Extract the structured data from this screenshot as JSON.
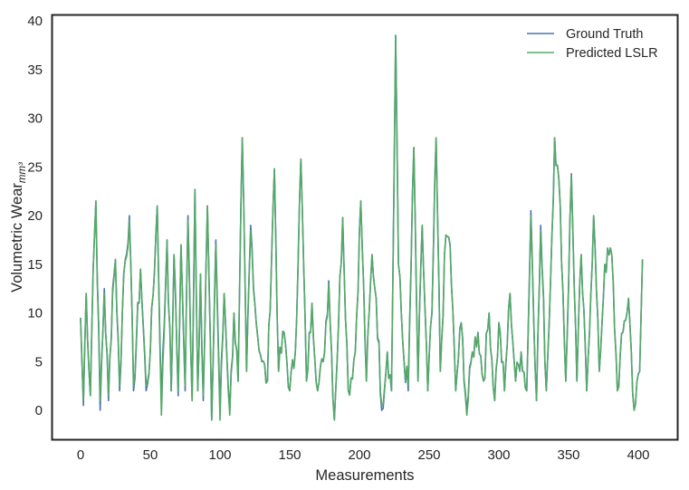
{
  "chart_data": {
    "type": "line",
    "title": "",
    "xlabel": "Measurements",
    "ylabel": "Volumetric Wear",
    "ylabel_subscript": "mm³",
    "xlim": [
      -20,
      420
    ],
    "ylim": [
      -3,
      40.5
    ],
    "xticks": [
      0,
      50,
      100,
      150,
      200,
      250,
      300,
      350,
      400
    ],
    "yticks": [
      0,
      5,
      10,
      15,
      20,
      25,
      30,
      35,
      40
    ],
    "grid": false,
    "legend_position": "upper right",
    "colors": {
      "ground_truth": "#4c72b0",
      "predicted": "#55a868",
      "frame": "#262626"
    },
    "series": [
      {
        "name": "Ground Truth",
        "color": "#4c72b0"
      },
      {
        "name": "Predicted LSLR",
        "color": "#55a868"
      }
    ],
    "keypoints": {
      "x": [
        0,
        2,
        4,
        7,
        9,
        11,
        14,
        17,
        20,
        23,
        25,
        28,
        31,
        35,
        38,
        43,
        47,
        50,
        55,
        58,
        62,
        65,
        67,
        70,
        72,
        75,
        77,
        80,
        82,
        84,
        86,
        88,
        91,
        94,
        97,
        100,
        103,
        107,
        110,
        113,
        116,
        119,
        122,
        126,
        130,
        134,
        139,
        142,
        146,
        150,
        154,
        158,
        162,
        166,
        170,
        174,
        178,
        182,
        188,
        192,
        197,
        201,
        205,
        209,
        212,
        216,
        220,
        223,
        226,
        228,
        232,
        235,
        239,
        242,
        245,
        249,
        252,
        255,
        258,
        262,
        265,
        269,
        273,
        277,
        281,
        285,
        289,
        293,
        297,
        300,
        304,
        308,
        312,
        316,
        320,
        323,
        327,
        330,
        334,
        337,
        340,
        344,
        348,
        352,
        356,
        359,
        363,
        368,
        372,
        376,
        381,
        385,
        389,
        393,
        397,
        401,
        403
      ],
      "ground_truth": [
        9.5,
        0.5,
        12,
        1.5,
        14.5,
        21.5,
        0,
        12.5,
        1,
        12.5,
        15.5,
        2,
        14,
        20,
        2,
        14.5,
        2,
        6,
        21,
        1,
        17.5,
        2,
        16,
        1.5,
        17,
        2,
        20,
        1,
        22.7,
        2,
        14,
        1,
        21,
        -1,
        17.5,
        0,
        12,
        0,
        10,
        3,
        28,
        4,
        19,
        9,
        5,
        3,
        24.8,
        4,
        8,
        2,
        6,
        25.8,
        3,
        11,
        2,
        5,
        13.3,
        -1,
        19.8,
        2,
        6,
        21.5,
        3,
        16,
        11.5,
        0,
        6,
        2,
        38.5,
        15,
        5,
        2,
        27,
        3,
        19,
        2,
        10,
        28,
        4,
        18,
        17,
        2,
        9,
        0,
        6,
        8,
        3,
        10,
        1,
        9,
        2,
        12,
        3,
        6,
        2,
        20.5,
        1,
        19,
        2,
        13,
        28,
        21,
        3,
        24.3,
        3,
        16,
        2,
        20,
        4,
        15,
        16,
        2,
        8,
        11.5,
        0,
        4,
        15.5
      ],
      "predicted": [
        9.5,
        1,
        12,
        1.5,
        14.5,
        21.5,
        1,
        12,
        1.5,
        12,
        15.5,
        2.5,
        14,
        19.5,
        2.5,
        14.5,
        2.5,
        6,
        21,
        -0.5,
        17.5,
        2,
        16,
        2,
        17,
        2.5,
        19.5,
        1,
        22.7,
        2,
        14,
        1.5,
        21,
        -1,
        17,
        -1,
        12,
        -0.5,
        10,
        3,
        28,
        4,
        18.5,
        9,
        5,
        3,
        24.8,
        4,
        8,
        2,
        6,
        25.8,
        3,
        11,
        2,
        5,
        13,
        -1,
        19.8,
        2,
        6,
        21.5,
        3,
        16,
        11.5,
        0.5,
        6,
        2,
        38.5,
        15,
        5,
        2.5,
        27,
        3,
        19,
        2,
        10,
        28,
        4,
        18,
        17,
        2,
        9,
        -0.5,
        6,
        8,
        3,
        10,
        1,
        9,
        2,
        12,
        3,
        6,
        2,
        20,
        1,
        18.5,
        2,
        13,
        28,
        21,
        3,
        24,
        3,
        16,
        2,
        20,
        4,
        15,
        16,
        2,
        8,
        11.5,
        0,
        4,
        15.5
      ]
    }
  },
  "legend": {
    "items": [
      {
        "label": "Ground Truth",
        "color": "#4c72b0"
      },
      {
        "label": "Predicted LSLR",
        "color": "#55a868"
      }
    ]
  },
  "axes": {
    "x_label": "Measurements",
    "y_label": "Volumetric Wear",
    "y_label_sub": "mm³",
    "x_ticks": [
      "0",
      "50",
      "100",
      "150",
      "200",
      "250",
      "300",
      "350",
      "400"
    ],
    "y_ticks": [
      "0",
      "5",
      "10",
      "15",
      "20",
      "25",
      "30",
      "35",
      "40"
    ]
  }
}
